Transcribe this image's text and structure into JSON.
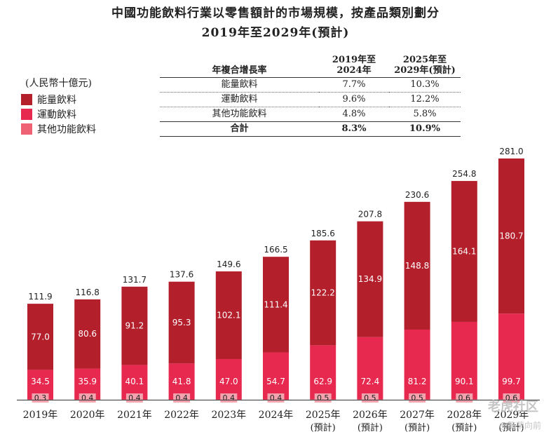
{
  "title_line1": "中國功能飲料行業以零售額計的市場規模，按產品類別劃分",
  "title_line2": "2019年至2029年(預計)",
  "unit": "(人民幣十億元)",
  "colors": {
    "energy": "#B41F2C",
    "sports": "#E8294F",
    "other": "#EF6276"
  },
  "legend": [
    "能量飲料",
    "運動飲料",
    "其他功能飲料"
  ],
  "cagr_table": {
    "header": [
      "年複合增長率",
      "2019年至2024年",
      "2025年至2029年(預計)"
    ],
    "rows": [
      [
        "能量飲料",
        "7.7%",
        "10.3%"
      ],
      [
        "運動飲料",
        "9.6%",
        "12.2%"
      ],
      [
        "其他功能飲料",
        "4.8%",
        "5.8%"
      ]
    ],
    "total": [
      "合計",
      "8.3%",
      "10.9%"
    ]
  },
  "chart_data": {
    "type": "bar",
    "stacked": true,
    "categories": [
      "2019年",
      "2020年",
      "2021年",
      "2022年",
      "2023年",
      "2024年",
      "2025年",
      "2026年",
      "2027年",
      "2028年",
      "2029年"
    ],
    "category_sublabels": [
      "",
      "",
      "",
      "",
      "",
      "",
      "(預計)",
      "(預計)",
      "(預計)",
      "(預計)",
      "(預計)"
    ],
    "series": [
      {
        "name": "其他功能飲料",
        "values": [
          0.3,
          0.4,
          0.4,
          0.4,
          0.4,
          0.4,
          0.5,
          0.5,
          0.5,
          0.6,
          0.6
        ]
      },
      {
        "name": "運動飲料",
        "values": [
          34.5,
          35.9,
          40.1,
          41.8,
          47.0,
          54.7,
          62.9,
          72.4,
          81.2,
          90.1,
          99.7
        ]
      },
      {
        "name": "能量飲料",
        "values": [
          77.0,
          80.6,
          91.2,
          95.3,
          102.1,
          111.4,
          122.2,
          134.9,
          148.8,
          164.1,
          180.7
        ]
      }
    ],
    "totals": [
      "111.9",
      "116.8",
      "131.7",
      "137.6",
      "149.6",
      "166.5",
      "185.6",
      "207.8",
      "230.6",
      "254.8",
      "281.0"
    ],
    "ylim": [
      0,
      281.0
    ]
  },
  "watermark": {
    "line1": "老虎社区",
    "line2": "@繁荣向前"
  }
}
